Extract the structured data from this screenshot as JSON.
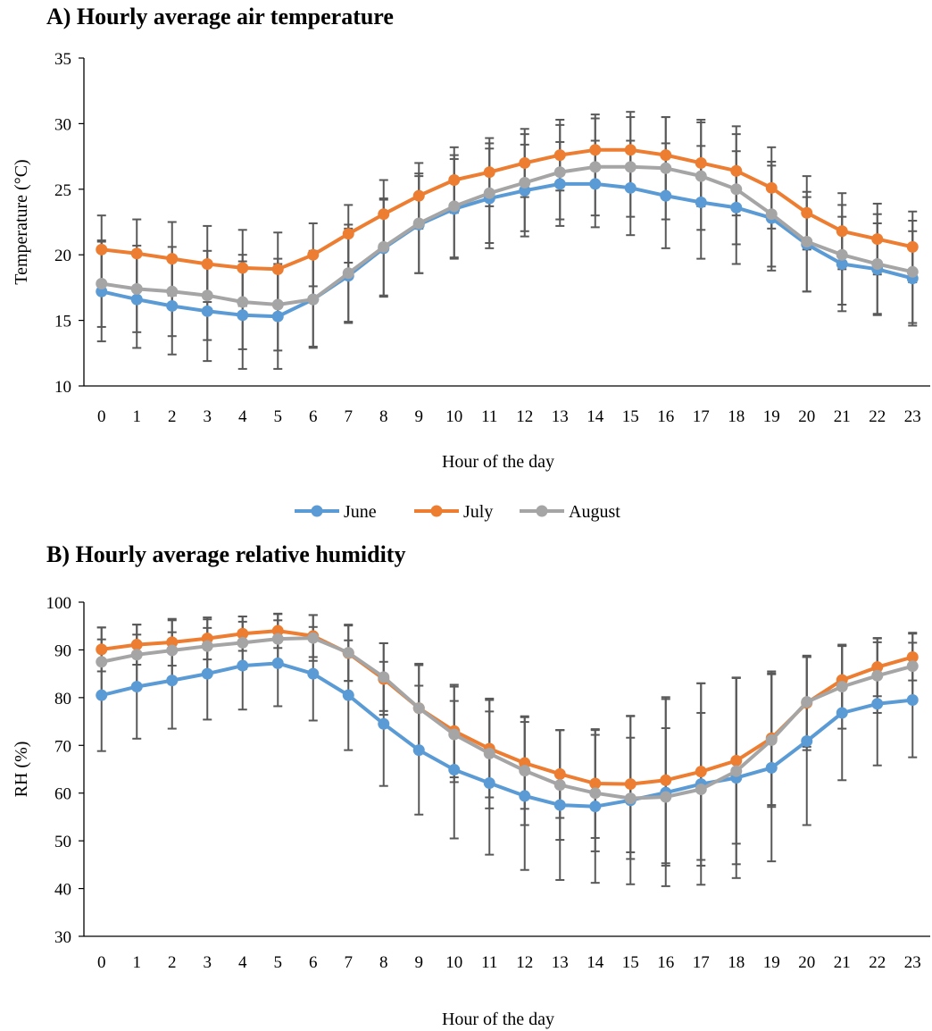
{
  "colors": {
    "June": "#5b9bd5",
    "July": "#ed7d31",
    "August": "#a5a5a5",
    "error_bar": "#595959",
    "axis": "#000000"
  },
  "legend": {
    "placement": "between-panels",
    "entries": [
      "June",
      "July",
      "August"
    ]
  },
  "chart_data": [
    {
      "type": "line",
      "title": "A) Hourly average air temperature",
      "xlabel": "Hour of the day",
      "ylabel": "Temperature (°C)",
      "ylim": [
        10,
        35
      ],
      "yticks": [
        10,
        15,
        20,
        25,
        30,
        35
      ],
      "x": [
        0,
        1,
        2,
        3,
        4,
        5,
        6,
        7,
        8,
        9,
        10,
        11,
        12,
        13,
        14,
        15,
        16,
        17,
        18,
        19,
        20,
        21,
        22,
        23
      ],
      "grid": false,
      "series": [
        {
          "name": "June",
          "values": [
            17.2,
            16.6,
            16.1,
            15.7,
            15.4,
            15.3,
            16.6,
            18.4,
            20.5,
            22.3,
            23.5,
            24.3,
            24.9,
            25.4,
            25.4,
            25.1,
            24.5,
            24.0,
            23.6,
            22.8,
            20.8,
            19.3,
            18.9,
            18.2
          ],
          "error": [
            3.8,
            3.7,
            3.7,
            3.8,
            4.1,
            4.0,
            3.7,
            3.6,
            3.7,
            3.7,
            3.8,
            3.8,
            3.5,
            3.2,
            3.3,
            3.6,
            4.0,
            4.3,
            4.3,
            4.0,
            3.6,
            3.6,
            3.5,
            3.6
          ]
        },
        {
          "name": "July",
          "values": [
            20.4,
            20.1,
            19.7,
            19.3,
            19.0,
            18.9,
            20.0,
            21.6,
            23.1,
            24.5,
            25.7,
            26.3,
            27.0,
            27.6,
            28.0,
            28.0,
            27.6,
            27.0,
            26.4,
            25.1,
            23.2,
            21.8,
            21.2,
            20.6
          ],
          "error": [
            2.6,
            2.6,
            2.8,
            2.9,
            2.9,
            2.8,
            2.4,
            2.2,
            2.6,
            2.5,
            2.5,
            2.6,
            2.6,
            2.7,
            2.7,
            2.9,
            2.9,
            3.3,
            3.4,
            3.1,
            2.8,
            2.9,
            2.7,
            2.7
          ]
        },
        {
          "name": "August",
          "values": [
            17.8,
            17.4,
            17.2,
            16.9,
            16.4,
            16.2,
            16.6,
            18.6,
            20.6,
            22.4,
            23.7,
            24.7,
            25.5,
            26.3,
            26.7,
            26.7,
            26.6,
            26.0,
            25.0,
            23.1,
            21.0,
            20.0,
            19.3,
            18.7
          ],
          "error": [
            3.3,
            3.3,
            3.4,
            3.4,
            3.6,
            3.5,
            3.6,
            3.7,
            3.7,
            3.8,
            3.9,
            3.8,
            3.7,
            3.6,
            3.7,
            3.8,
            3.9,
            4.1,
            4.2,
            4.0,
            3.8,
            3.8,
            3.8,
            3.9
          ]
        }
      ]
    },
    {
      "type": "line",
      "title": "B) Hourly average relative humidity",
      "xlabel": "Hour of the day",
      "ylabel": "RH (%)",
      "ylim": [
        30,
        100
      ],
      "yticks": [
        30,
        40,
        50,
        60,
        70,
        80,
        90,
        100
      ],
      "x": [
        0,
        1,
        2,
        3,
        4,
        5,
        6,
        7,
        8,
        9,
        10,
        11,
        12,
        13,
        14,
        15,
        16,
        17,
        18,
        19,
        20,
        21,
        22,
        23
      ],
      "grid": false,
      "series": [
        {
          "name": "June",
          "values": [
            80.5,
            82.3,
            83.6,
            85.0,
            86.7,
            87.2,
            85.0,
            80.5,
            74.5,
            69.0,
            64.9,
            62.1,
            59.4,
            57.5,
            57.2,
            58.5,
            60.1,
            61.9,
            63.2,
            65.3,
            70.9,
            76.8,
            78.7,
            79.5
          ],
          "error": [
            11.7,
            10.9,
            10.1,
            9.6,
            9.2,
            9.0,
            9.8,
            11.5,
            13.0,
            13.5,
            14.4,
            15.0,
            15.5,
            15.7,
            16.0,
            17.6,
            19.6,
            21.1,
            21.0,
            19.6,
            17.6,
            14.1,
            12.9,
            12.0
          ]
        },
        {
          "name": "July",
          "values": [
            90.1,
            91.1,
            91.6,
            92.4,
            93.4,
            94.0,
            92.9,
            89.3,
            83.9,
            77.8,
            73.0,
            69.3,
            66.3,
            64.0,
            62.0,
            61.9,
            62.7,
            64.5,
            66.8,
            71.5,
            78.9,
            83.7,
            86.4,
            88.5
          ],
          "error": [
            4.6,
            4.2,
            4.9,
            4.4,
            3.6,
            3.6,
            4.4,
            5.8,
            7.5,
            9.3,
            9.7,
            10.2,
            9.6,
            9.2,
            11.4,
            14.3,
            17.4,
            18.5,
            17.4,
            14.0,
            9.9,
            7.1,
            6.1,
            4.9
          ]
        },
        {
          "name": "August",
          "values": [
            87.5,
            89.0,
            89.9,
            90.8,
            91.5,
            92.3,
            92.5,
            89.4,
            84.3,
            77.8,
            72.3,
            68.3,
            64.7,
            61.7,
            60.0,
            58.9,
            59.2,
            60.8,
            64.6,
            71.1,
            79.1,
            82.3,
            84.6,
            86.6
          ],
          "error": [
            7.2,
            6.3,
            6.3,
            5.6,
            5.5,
            5.2,
            4.8,
            5.9,
            7.1,
            9.0,
            10.0,
            11.5,
            11.4,
            11.5,
            12.2,
            12.7,
            14.4,
            16.0,
            19.5,
            14.0,
            9.4,
            8.8,
            7.8,
            7.0
          ]
        }
      ]
    }
  ]
}
